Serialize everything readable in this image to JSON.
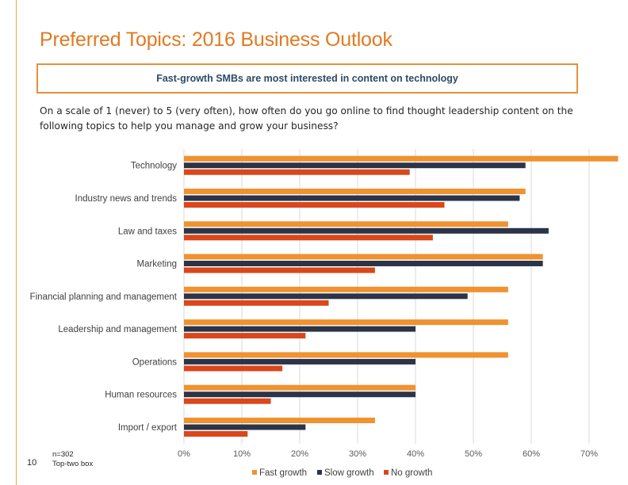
{
  "header": {
    "title": "Preferred Topics: 2016 Business Outlook",
    "callout": "Fast-growth SMBs are most interested in content on technology",
    "question": "On a scale of 1 (never) to 5 (very often), how often do you go online to find thought leadership content on the following topics to help you manage and grow your business?"
  },
  "footer": {
    "page_number": "10",
    "sample_size": "n=302",
    "measure": "Top-two box"
  },
  "colors": {
    "fast_growth": "#f0922f",
    "slow_growth": "#2b3448",
    "no_growth": "#d9471a",
    "title": "#e07a22",
    "gridline": "#d9d9d9"
  },
  "chart_data": {
    "type": "bar",
    "orientation": "horizontal",
    "categories": [
      "Technology",
      "Industry news and trends",
      "Law and taxes",
      "Marketing",
      "Financial planning and management",
      "Leadership and management",
      "Operations",
      "Human resources",
      "Import / export"
    ],
    "series": [
      {
        "name": "Fast growth",
        "values": [
          75,
          59,
          56,
          62,
          56,
          56,
          56,
          40,
          33
        ]
      },
      {
        "name": "Slow growth",
        "values": [
          59,
          58,
          63,
          62,
          49,
          40,
          40,
          40,
          21
        ]
      },
      {
        "name": "No growth",
        "values": [
          39,
          45,
          43,
          33,
          25,
          21,
          17,
          15,
          11
        ]
      }
    ],
    "x_ticks": [
      "0%",
      "10%",
      "20%",
      "30%",
      "40%",
      "50%",
      "60%",
      "70%"
    ],
    "xlim": [
      0,
      75
    ],
    "grid": true,
    "legend_position": "bottom"
  }
}
